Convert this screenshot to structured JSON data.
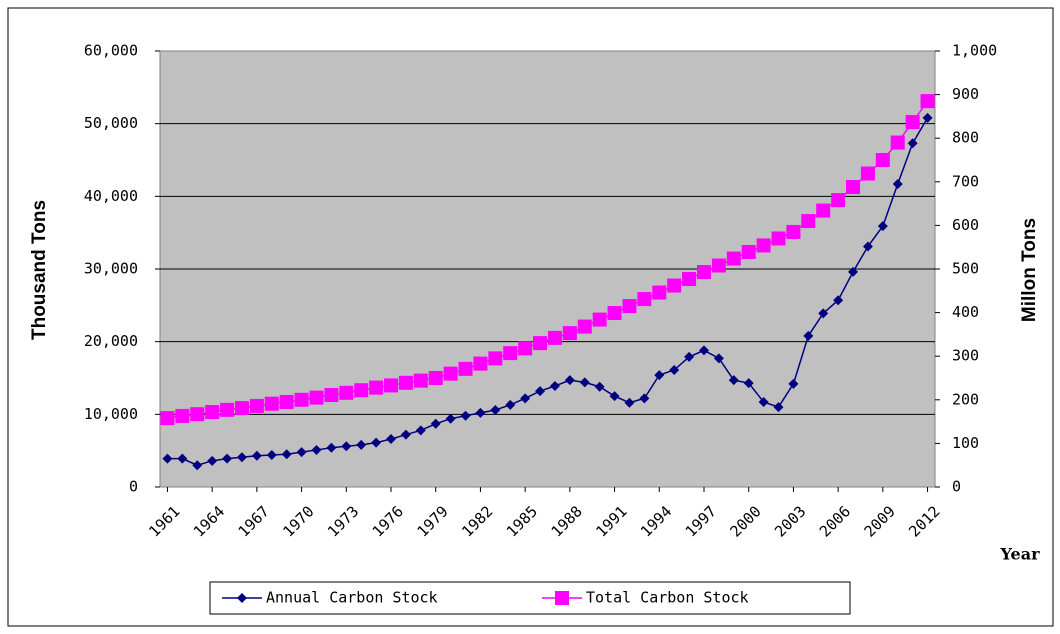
{
  "chart_data": {
    "type": "line",
    "xlabel": "Year",
    "ylabel": "Thousand Tons",
    "y2label": "Millon Tons",
    "x": [
      1961,
      1962,
      1963,
      1964,
      1965,
      1966,
      1967,
      1968,
      1969,
      1970,
      1971,
      1972,
      1973,
      1974,
      1975,
      1976,
      1977,
      1978,
      1979,
      1980,
      1981,
      1982,
      1983,
      1984,
      1985,
      1986,
      1987,
      1988,
      1989,
      1990,
      1991,
      1992,
      1993,
      1994,
      1995,
      1996,
      1997,
      1998,
      1999,
      2000,
      2001,
      2002,
      2003,
      2004,
      2005,
      2006,
      2007,
      2008,
      2009,
      2010,
      2011,
      2012
    ],
    "xlim": [
      1960.5,
      2012.5
    ],
    "xticks": [
      1961,
      1964,
      1967,
      1970,
      1973,
      1976,
      1979,
      1982,
      1985,
      1988,
      1991,
      1994,
      1997,
      2000,
      2003,
      2006,
      2009,
      2012
    ],
    "ylim": [
      0,
      60000
    ],
    "yticks": [
      0,
      {
        "value": 10000,
        "label": "10,000"
      },
      {
        "value": 20000,
        "label": "20,000"
      },
      {
        "value": 30000,
        "label": "30,000"
      },
      {
        "value": 40000,
        "label": "40,000"
      },
      {
        "value": 50000,
        "label": "50,000"
      },
      {
        "value": 60000,
        "label": "60,000"
      }
    ],
    "y2lim": [
      0,
      1000
    ],
    "y2ticks": [
      0,
      100,
      200,
      300,
      400,
      500,
      600,
      700,
      800,
      900,
      {
        "value": 1000,
        "label": "1,000"
      }
    ],
    "grid": true,
    "legend": "bottom",
    "series": [
      {
        "name": "Annual Carbon Stock",
        "color": "#000080",
        "marker": "diamond",
        "values": [
          3900,
          3900,
          3000,
          3600,
          3900,
          4100,
          4300,
          4400,
          4500,
          4800,
          5100,
          5400,
          5600,
          5800,
          6100,
          6600,
          7200,
          7800,
          8700,
          9400,
          9800,
          10200,
          10600,
          11300,
          12200,
          13200,
          13900,
          14700,
          14400,
          13800,
          12500,
          11600,
          12200,
          15400,
          16100,
          17900,
          18800,
          17700,
          14700,
          14300,
          11700,
          11000,
          14200,
          20800,
          23900,
          25700,
          29600,
          33100,
          35900,
          41700,
          47300,
          50800
        ]
      },
      {
        "name": "Total Carbon Stock",
        "color": "#ff00ff",
        "marker": "square",
        "axis": "y2",
        "values": [
          158,
          163,
          167,
          172,
          177,
          181,
          186,
          191,
          195,
          200,
          205,
          211,
          216,
          222,
          228,
          233,
          239,
          244,
          250,
          260,
          271,
          283,
          295,
          307,
          318,
          330,
          342,
          353,
          368,
          384,
          399,
          415,
          431,
          446,
          462,
          477,
          493,
          508,
          524,
          539,
          554,
          570,
          585,
          610,
          634,
          658,
          688,
          719,
          750,
          790,
          837,
          885
        ]
      }
    ]
  }
}
